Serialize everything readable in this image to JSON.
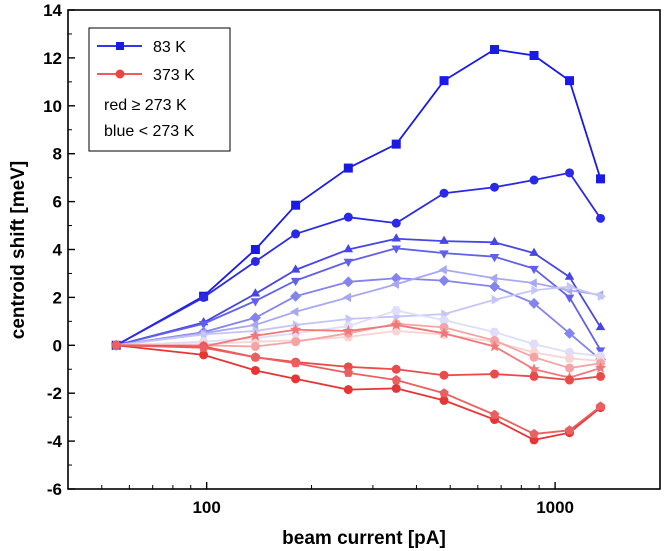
{
  "chart_data": {
    "type": "line",
    "xlabel": "beam current [pA]",
    "ylabel": "centroid shift [meV]",
    "x_scale": "log",
    "xlim": [
      40,
      2000
    ],
    "ylim": [
      -6,
      14
    ],
    "x_ticks": [
      100,
      1000
    ],
    "y_ticks": [
      -6,
      -4,
      -2,
      0,
      2,
      4,
      6,
      8,
      10,
      12,
      14
    ],
    "x": [
      55,
      98,
      138,
      180,
      255,
      350,
      480,
      670,
      870,
      1100,
      1350
    ],
    "legend": {
      "position": "top-left",
      "entries": [
        {
          "label": "83 K",
          "color": "#1a1ae6",
          "marker": "square"
        },
        {
          "label": "373 K",
          "color": "#ee4444",
          "marker": "circle"
        }
      ],
      "notes": [
        "red ≥ 273 K",
        "blue < 273 K"
      ]
    },
    "series": [
      {
        "color": "#1a1ae6",
        "marker": "square",
        "values": [
          0,
          2.05,
          4.0,
          5.85,
          7.4,
          8.4,
          11.05,
          12.35,
          12.1,
          11.05,
          6.95
        ]
      },
      {
        "color": "#2a2ae6",
        "marker": "circle",
        "values": [
          0,
          2.0,
          3.5,
          4.65,
          5.35,
          5.1,
          6.35,
          6.6,
          6.9,
          7.2,
          5.3
        ]
      },
      {
        "color": "#4646e8",
        "marker": "triangle-up",
        "values": [
          0,
          0.95,
          2.15,
          3.15,
          4.0,
          4.45,
          4.35,
          4.3,
          3.85,
          2.85,
          0.75
        ]
      },
      {
        "color": "#6060ea",
        "marker": "triangle-down",
        "values": [
          0,
          0.9,
          1.85,
          2.7,
          3.5,
          4.05,
          3.85,
          3.7,
          3.2,
          2.0,
          -0.2
        ]
      },
      {
        "color": "#8484ee",
        "marker": "diamond",
        "values": [
          0,
          0.55,
          1.15,
          2.05,
          2.65,
          2.8,
          2.7,
          2.45,
          1.75,
          0.5,
          -0.6
        ]
      },
      {
        "color": "#a8a8f2",
        "marker": "triangle-left",
        "values": [
          0,
          0.5,
          0.85,
          1.4,
          2.0,
          2.55,
          3.15,
          2.8,
          2.6,
          2.3,
          2.1
        ]
      },
      {
        "color": "#c6c6f6",
        "marker": "triangle-right",
        "values": [
          0,
          0.45,
          0.6,
          0.85,
          1.1,
          1.2,
          1.3,
          1.9,
          2.3,
          2.45,
          2.05
        ]
      },
      {
        "color": "#dedefa",
        "marker": "hexagon",
        "values": [
          0,
          0.15,
          0.3,
          0.5,
          0.8,
          1.45,
          1.05,
          0.55,
          0.05,
          -0.3,
          -0.45
        ]
      },
      {
        "color": "#fad4d4",
        "marker": "hexagon",
        "values": [
          0,
          0.05,
          0.15,
          0.2,
          0.35,
          0.6,
          0.45,
          0.15,
          -0.3,
          -0.55,
          -0.65
        ]
      },
      {
        "color": "#f4a4a4",
        "marker": "circle",
        "values": [
          0,
          0.0,
          -0.05,
          0.15,
          0.5,
          0.9,
          0.75,
          0.2,
          -0.5,
          -0.95,
          -0.75
        ]
      },
      {
        "color": "#f07878",
        "marker": "star",
        "values": [
          0,
          -0.05,
          0.4,
          0.65,
          0.6,
          0.85,
          0.5,
          -0.05,
          -1.0,
          -1.35,
          -0.95
        ]
      },
      {
        "color": "#ea4a4a",
        "marker": "circle",
        "values": [
          0,
          -0.05,
          -0.5,
          -0.7,
          -0.9,
          -1.0,
          -1.25,
          -1.2,
          -1.3,
          -1.45,
          -1.3
        ]
      },
      {
        "color": "#e83434",
        "marker": "circle",
        "values": [
          0,
          -0.4,
          -1.05,
          -1.4,
          -1.85,
          -1.8,
          -2.3,
          -3.1,
          -3.95,
          -3.65,
          -2.6
        ]
      },
      {
        "color": "#ea6060",
        "marker": "pentagon",
        "values": [
          0,
          -0.1,
          -0.5,
          -0.75,
          -1.15,
          -1.45,
          -2.0,
          -2.9,
          -3.7,
          -3.55,
          -2.55
        ]
      }
    ]
  }
}
